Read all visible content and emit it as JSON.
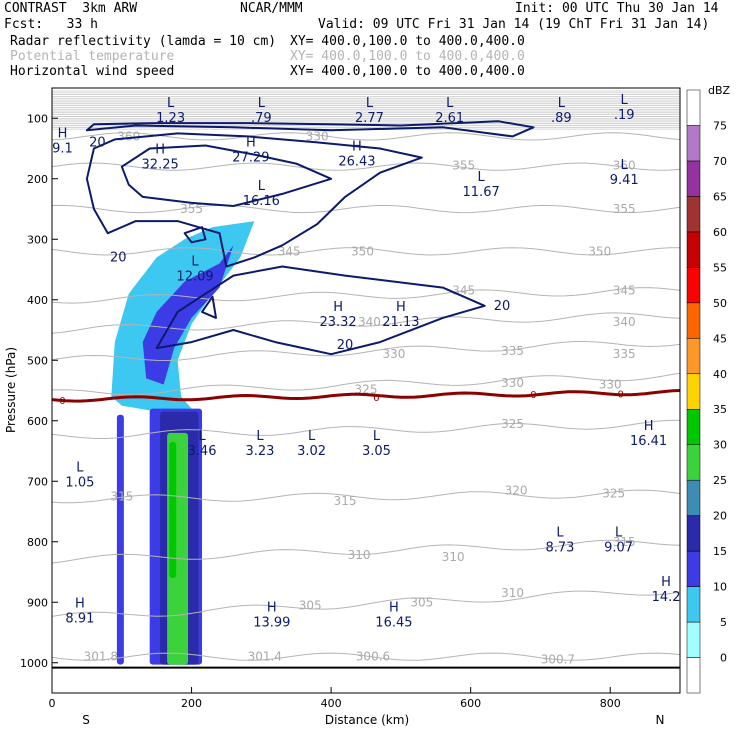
{
  "header": {
    "row1_left": "CONTRAST  3km ARW",
    "row1_mid": "NCAR/MMM",
    "row1_right": "Init: 00 UTC Thu 30 Jan 14",
    "row2_left": "Fcst:   33 h",
    "row2_right": "Valid: 09 UTC Fri 31 Jan 14 (19 ChT Fri 31 Jan 14)",
    "fields": [
      {
        "name": "Radar reflectivity (lamda = 10 cm)",
        "xy": "XY= 400.0,100.0 to 400.0,400.0",
        "gray": false
      },
      {
        "name": "Potential temperature",
        "xy": "XY= 400.0,100.0 to 400.0,400.0",
        "gray": true
      },
      {
        "name": "Horizontal wind speed",
        "xy": "XY= 400.0,100.0 to 400.0,400.0",
        "gray": false
      }
    ]
  },
  "chart_data": {
    "type": "cross-section",
    "xlabel": "Distance (km)",
    "ylabel": "Pressure (hPa)",
    "xlim": [
      0,
      900
    ],
    "ylim": [
      1050,
      50
    ],
    "x_ticks": [
      0,
      200,
      400,
      600,
      800
    ],
    "y_ticks": [
      100,
      200,
      300,
      400,
      500,
      600,
      700,
      800,
      900,
      1000
    ],
    "x_end_labels": {
      "left": "S",
      "right": "N"
    },
    "colorbar": {
      "unit": "dBZ",
      "levels": [
        0,
        5,
        10,
        15,
        20,
        25,
        30,
        35,
        40,
        45,
        50,
        55,
        60,
        65,
        70,
        75
      ],
      "colors": [
        "#ffffff",
        "#a0ffff",
        "#3cc8f0",
        "#3c3ce6",
        "#2a2aaa",
        "#3c8cb4",
        "#3cd23c",
        "#00c800",
        "#ffd200",
        "#ff9628",
        "#ff6400",
        "#ff0000",
        "#c80000",
        "#a03232",
        "#9632a0",
        "#b478c8",
        "#ffffff"
      ]
    },
    "reflectivity_cells": [
      {
        "level": 5,
        "x": [
          85,
          290
        ],
        "p": [
          270,
          580
        ]
      },
      {
        "level": 10,
        "x": [
          140,
          215
        ],
        "p": [
          580,
          1003
        ]
      },
      {
        "level": 15,
        "x": [
          155,
          210
        ],
        "p": [
          585,
          1003
        ]
      },
      {
        "level": 25,
        "x": [
          165,
          195
        ],
        "p": [
          620,
          1003
        ]
      },
      {
        "level": 30,
        "x": [
          168,
          178
        ],
        "p": [
          635,
          860
        ]
      },
      {
        "level": 10,
        "x": [
          93,
          103
        ],
        "p": [
          590,
          1003
        ]
      }
    ],
    "theta_isolines": [
      {
        "value": 301.8,
        "p_left": 990,
        "p_right": 990
      },
      {
        "value": 305,
        "p_left": 925,
        "p_right": 880
      },
      {
        "value": 310,
        "p_left": 830,
        "p_right": 800
      },
      {
        "value": 315,
        "p_left": 730,
        "p_right": 720
      },
      {
        "value": 320,
        "p_left": 625,
        "p_right": 605
      },
      {
        "value": 325,
        "p_left": 555,
        "p_right": 525
      },
      {
        "value": 330,
        "p_left": 500,
        "p_right": 470
      },
      {
        "value": 335,
        "p_left": 450,
        "p_right": 425
      },
      {
        "value": 340,
        "p_left": 400,
        "p_right": 385
      },
      {
        "value": 345,
        "p_left": 320,
        "p_right": 320
      },
      {
        "value": 350,
        "p_left": 250,
        "p_right": 250
      },
      {
        "value": 355,
        "p_left": 180,
        "p_right": 180
      },
      {
        "value": 360,
        "p_left": 130,
        "p_right": 130
      }
    ],
    "freezing_level_label": "0",
    "wind_speed_contour_label": "20",
    "theta_labels": [
      "301.8",
      "301.4",
      "300.6",
      "300.7",
      "305",
      "305",
      "310",
      "310",
      "310",
      "315",
      "315",
      "315",
      "320",
      "325",
      "325",
      "325",
      "330",
      "330",
      "330",
      "335",
      "335",
      "340",
      "340",
      "345",
      "345",
      "345",
      "350",
      "350",
      "355",
      "355",
      "355",
      "360",
      "360",
      "330"
    ],
    "extrema": [
      {
        "t": "L",
        "v": "1.23",
        "x": 170,
        "p": 98
      },
      {
        "t": "L",
        "v": ".79",
        "x": 300,
        "p": 98
      },
      {
        "t": "L",
        "v": "2.77",
        "x": 455,
        "p": 98
      },
      {
        "t": "L",
        "v": "2.61",
        "x": 570,
        "p": 98
      },
      {
        "t": "L",
        "v": ".89",
        "x": 730,
        "p": 98
      },
      {
        "t": "L",
        "v": ".19",
        "x": 820,
        "p": 93
      },
      {
        "t": "H",
        "v": "9.1",
        "x": 15,
        "p": 148
      },
      {
        "t": "H",
        "v": "32.25",
        "x": 155,
        "p": 175
      },
      {
        "t": "H",
        "v": "27.29",
        "x": 285,
        "p": 163
      },
      {
        "t": "H",
        "v": "26.43",
        "x": 437,
        "p": 170
      },
      {
        "t": "L",
        "v": "16.16",
        "x": 300,
        "p": 235
      },
      {
        "t": "L",
        "v": "11.67",
        "x": 615,
        "p": 220
      },
      {
        "t": "L",
        "v": "9.41",
        "x": 820,
        "p": 200
      },
      {
        "t": "L",
        "v": "12.09",
        "x": 205,
        "p": 360
      },
      {
        "t": "H",
        "v": "23.32",
        "x": 410,
        "p": 435
      },
      {
        "t": "H",
        "v": "21.13",
        "x": 500,
        "p": 435
      },
      {
        "t": "H",
        "v": "16.41",
        "x": 855,
        "p": 632
      },
      {
        "t": "L",
        "v": "3.46",
        "x": 215,
        "p": 648
      },
      {
        "t": "L",
        "v": "3.23",
        "x": 298,
        "p": 648
      },
      {
        "t": "L",
        "v": "3.02",
        "x": 372,
        "p": 648
      },
      {
        "t": "L",
        "v": "3.05",
        "x": 465,
        "p": 648
      },
      {
        "t": "L",
        "v": "1.05",
        "x": 40,
        "p": 700
      },
      {
        "t": "L",
        "v": "8.73",
        "x": 728,
        "p": 808
      },
      {
        "t": "L",
        "v": "9.07",
        "x": 812,
        "p": 808
      },
      {
        "t": "H",
        "v": "8.91",
        "x": 40,
        "p": 925
      },
      {
        "t": "H",
        "v": "13.99",
        "x": 315,
        "p": 932
      },
      {
        "t": "H",
        "v": "16.45",
        "x": 490,
        "p": 932
      },
      {
        "t": "H",
        "v": "14.2",
        "x": 880,
        "p": 890
      }
    ]
  }
}
